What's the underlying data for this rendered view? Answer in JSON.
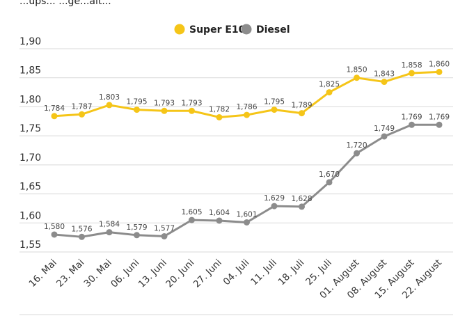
{
  "header": {
    "text": "...ups... ...ge...alt..."
  },
  "chart_data": {
    "type": "line",
    "title": "",
    "xlabel": "",
    "ylabel": "",
    "ylim": [
      1.55,
      1.9
    ],
    "yticks": [
      "1,55",
      "1,60",
      "1,65",
      "1,70",
      "1,75",
      "1,80",
      "1,85",
      "1,90"
    ],
    "ytick_values": [
      1.55,
      1.6,
      1.65,
      1.7,
      1.75,
      1.8,
      1.85,
      1.9
    ],
    "grid": true,
    "legend_position": "top-center",
    "categories": [
      "16. Mai",
      "23. Mai",
      "30. Mai",
      "06. Juni",
      "13. Juni",
      "20. Juni",
      "27. Juni",
      "04. Juli",
      "11. Juli",
      "18. Juli",
      "25. Juli",
      "01. August",
      "08. August",
      "15. August",
      "22. August"
    ],
    "series": [
      {
        "name": "Super E10",
        "color": "#f5c518",
        "values": [
          1.784,
          1.787,
          1.803,
          1.795,
          1.793,
          1.793,
          1.782,
          1.786,
          1.795,
          1.789,
          1.825,
          1.85,
          1.843,
          1.858,
          1.86
        ],
        "labels": [
          "1,784",
          "1,787",
          "1,803",
          "1,795",
          "1,793",
          "1,793",
          "1,782",
          "1,786",
          "1,795",
          "1,789",
          "1,825",
          "1,850",
          "1,843",
          "1,858",
          "1,860"
        ]
      },
      {
        "name": "Diesel",
        "color": "#8c8c8c",
        "values": [
          1.58,
          1.576,
          1.584,
          1.579,
          1.577,
          1.605,
          1.604,
          1.601,
          1.629,
          1.628,
          1.67,
          1.72,
          1.749,
          1.769,
          1.769
        ],
        "labels": [
          "1,580",
          "1,576",
          "1,584",
          "1,579",
          "1,577",
          "1,605",
          "1,604",
          "1,601",
          "1,629",
          "1,628",
          "1,670",
          "1,720",
          "1,749",
          "1,769",
          "1,769"
        ]
      }
    ]
  }
}
